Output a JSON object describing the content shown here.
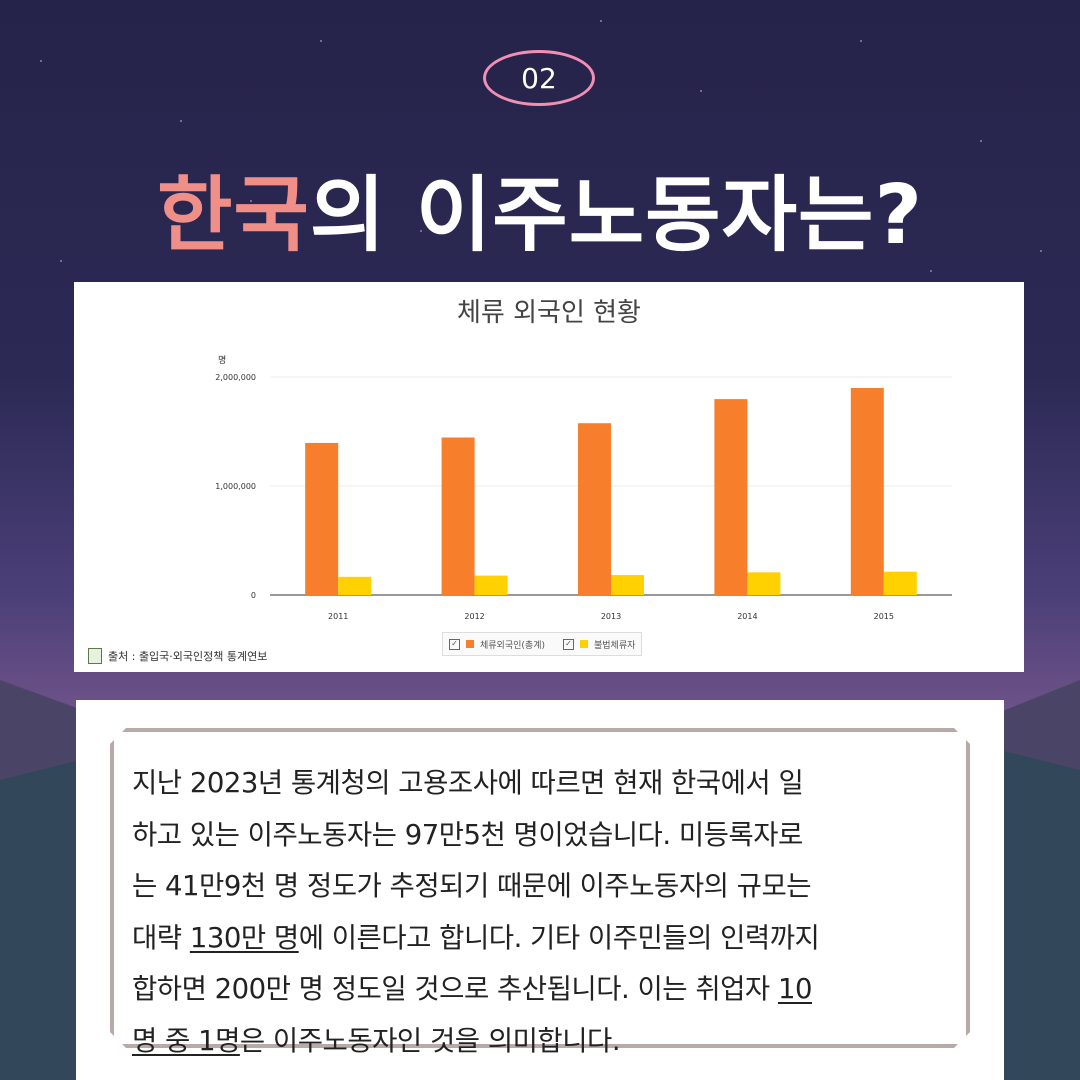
{
  "badge": "02",
  "headline": {
    "accent": "한국",
    "rest": "의 이주노동자는?"
  },
  "chart_data": {
    "type": "bar",
    "title": "체류 외국인 현황",
    "ylabel": "명",
    "ylim": [
      0,
      2000000
    ],
    "yticks": [
      "0",
      "1,000,000",
      "2,000,000"
    ],
    "categories": [
      "2011",
      "2012",
      "2013",
      "2014",
      "2015"
    ],
    "series": [
      {
        "name": "체류외국인(총계)",
        "color": "#f77f2b",
        "values": [
          1395000,
          1445000,
          1576000,
          1797000,
          1899000
        ]
      },
      {
        "name": "불법체류자",
        "color": "#ffd100",
        "values": [
          167000,
          178000,
          183000,
          208000,
          214000
        ]
      }
    ],
    "legend": "bottom-center",
    "grid": true,
    "source": "출처 : 출입국·외국인정책 통계연보"
  },
  "body": {
    "line1": "지난 2023년 통계청의 고용조사에 따르면 현재 한국에서 일",
    "line2": "하고 있는 이주노동자는 97만5천 명이었습니다. 미등록자로",
    "line3": "는 41만9천 명 정도가 추정되기 때문에 이주노동자의 규모는",
    "line4_pre": "대략 ",
    "line4_u": "130만 명",
    "line4_post": "에 이른다고 합니다. 기타 이주민들의 인력까지",
    "line5_pre": "합하면 200만 명 정도일 것으로 추산됩니다. 이는 취업자 ",
    "line5_u": "10",
    "line6_u": "명 중 1명",
    "line6_post": "은 이주노동자인 것을 의미합니다."
  }
}
